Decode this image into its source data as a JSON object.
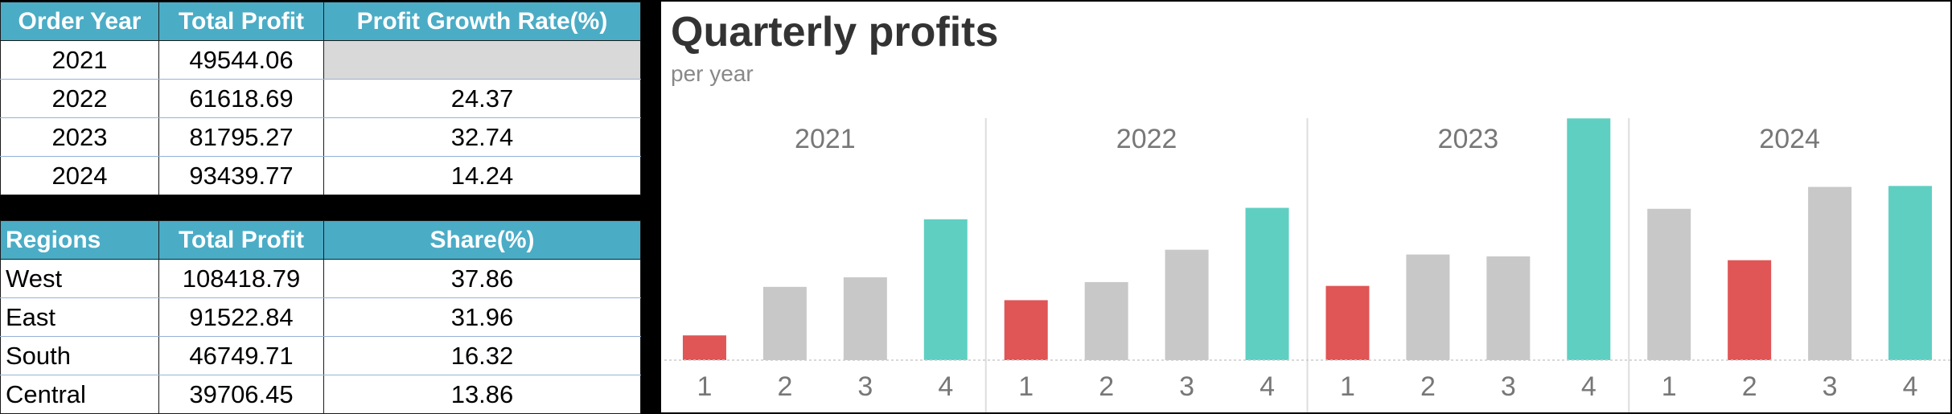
{
  "years_table": {
    "headers": [
      "Order Year",
      "Total Profit",
      "Profit Growth Rate(%)"
    ],
    "rows": [
      [
        "2021",
        "49544.06",
        ""
      ],
      [
        "2022",
        "61618.69",
        "24.37"
      ],
      [
        "2023",
        "81795.27",
        "32.74"
      ],
      [
        "2024",
        "93439.77",
        "14.24"
      ]
    ]
  },
  "regions_table": {
    "headers": [
      "Regions",
      "Total Profit",
      "Share(%)"
    ],
    "rows": [
      [
        "West",
        "108418.79",
        "37.86"
      ],
      [
        "East",
        "91522.84",
        "31.96"
      ],
      [
        "South",
        "46749.71",
        "16.32"
      ],
      [
        "Central",
        "39706.45",
        "13.86"
      ]
    ]
  },
  "colors": {
    "header_bg": "#4bacc6",
    "header_text": "#ffffff",
    "empty_cell": "#d9d9d9",
    "bar_max": "#5fcfc2",
    "bar_min": "#e05555",
    "bar_other": "#c8c8c8",
    "divider": "#dddddd",
    "axis_text": "#777777"
  },
  "chart_data": {
    "type": "bar",
    "title": "Quarterly profits",
    "subtitle": "per year",
    "ylim": [
      0,
      25000
    ],
    "grid": false,
    "legend": "none",
    "panels": [
      {
        "year": "2021",
        "quarters": [
          "1",
          "2",
          "3",
          "4"
        ],
        "values": [
          2600,
          7700,
          8700,
          14800
        ],
        "highlight": [
          "min",
          "other",
          "other",
          "max"
        ]
      },
      {
        "year": "2022",
        "quarters": [
          "1",
          "2",
          "3",
          "4"
        ],
        "values": [
          6300,
          8200,
          11600,
          16000
        ],
        "highlight": [
          "min",
          "other",
          "other",
          "max"
        ]
      },
      {
        "year": "2023",
        "quarters": [
          "1",
          "2",
          "3",
          "4"
        ],
        "values": [
          7800,
          11100,
          10900,
          25400
        ],
        "highlight": [
          "min",
          "other",
          "other",
          "max"
        ]
      },
      {
        "year": "2024",
        "quarters": [
          "1",
          "2",
          "3",
          "4"
        ],
        "values": [
          15900,
          10500,
          18200,
          18300
        ],
        "highlight": [
          "other",
          "min",
          "other",
          "max"
        ]
      }
    ]
  }
}
